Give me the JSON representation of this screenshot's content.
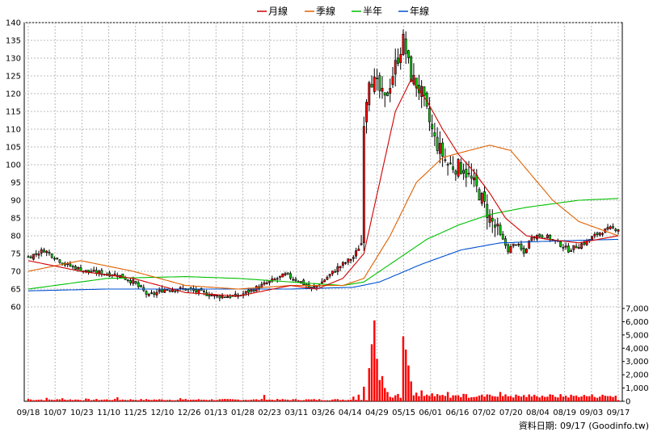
{
  "chart_data": {
    "type": "candlestick",
    "legend": [
      {
        "label": "月線",
        "color": "#d00000"
      },
      {
        "label": "季線",
        "color": "#e06000"
      },
      {
        "label": "半年",
        "color": "#00c000"
      },
      {
        "label": "年線",
        "color": "#0050d0"
      }
    ],
    "price_axis": {
      "min": 60,
      "max": 140,
      "ticks": [
        60,
        65,
        70,
        75,
        80,
        85,
        90,
        95,
        100,
        105,
        110,
        115,
        120,
        125,
        130,
        135,
        140
      ]
    },
    "volume_axis": {
      "min": 0,
      "max": 7000,
      "ticks": [
        0,
        1000,
        2000,
        3000,
        4000,
        5000,
        6000,
        7000
      ],
      "tick_labels": [
        "0",
        "1,000",
        "2,000",
        "3,000",
        "4,000",
        "5,000",
        "6,000",
        "7,000"
      ]
    },
    "x_labels": [
      "09/18",
      "10/07",
      "10/23",
      "11/10",
      "11/25",
      "12/10",
      "12/26",
      "01/13",
      "01/28",
      "02/23",
      "03/11",
      "03/26",
      "04/14",
      "04/29",
      "05/15",
      "06/01",
      "06/16",
      "07/02",
      "07/20",
      "08/04",
      "08/19",
      "09/03",
      "09/17"
    ],
    "close_keyframes": [
      [
        0,
        74
      ],
      [
        6,
        76
      ],
      [
        14,
        72
      ],
      [
        22,
        70
      ],
      [
        34,
        69
      ],
      [
        40,
        67
      ],
      [
        46,
        63
      ],
      [
        52,
        65
      ],
      [
        60,
        65
      ],
      [
        66,
        64
      ],
      [
        72,
        63
      ],
      [
        80,
        63
      ],
      [
        86,
        65
      ],
      [
        92,
        67
      ],
      [
        98,
        69
      ],
      [
        104,
        67
      ],
      [
        108,
        65
      ],
      [
        112,
        67
      ],
      [
        118,
        71
      ],
      [
        124,
        74
      ],
      [
        127,
        78
      ],
      [
        128,
        113
      ],
      [
        130,
        125
      ],
      [
        133,
        122
      ],
      [
        136,
        118
      ],
      [
        140,
        128
      ],
      [
        143,
        135
      ],
      [
        146,
        125
      ],
      [
        150,
        120
      ],
      [
        153,
        112
      ],
      [
        155,
        107
      ],
      [
        160,
        100
      ],
      [
        166,
        99
      ],
      [
        172,
        92
      ],
      [
        176,
        85
      ],
      [
        180,
        80
      ],
      [
        183,
        76
      ],
      [
        186,
        78
      ],
      [
        189,
        75
      ],
      [
        192,
        80
      ],
      [
        197,
        80
      ],
      [
        202,
        78
      ],
      [
        206,
        76
      ],
      [
        212,
        78
      ],
      [
        218,
        81
      ],
      [
        222,
        82
      ],
      [
        225,
        82
      ]
    ],
    "ma_month": [
      [
        0,
        73
      ],
      [
        20,
        70
      ],
      [
        40,
        68
      ],
      [
        60,
        64
      ],
      [
        80,
        63
      ],
      [
        100,
        66
      ],
      [
        110,
        65
      ],
      [
        120,
        68
      ],
      [
        128,
        75
      ],
      [
        134,
        95
      ],
      [
        140,
        115
      ],
      [
        146,
        124
      ],
      [
        152,
        118
      ],
      [
        158,
        110
      ],
      [
        164,
        103
      ],
      [
        170,
        98
      ],
      [
        176,
        92
      ],
      [
        182,
        85
      ],
      [
        190,
        80
      ],
      [
        198,
        79
      ],
      [
        210,
        78
      ],
      [
        225,
        80
      ]
    ],
    "ma_quarter": [
      [
        0,
        70
      ],
      [
        20,
        73
      ],
      [
        40,
        70
      ],
      [
        60,
        66
      ],
      [
        80,
        65
      ],
      [
        100,
        66
      ],
      [
        120,
        66
      ],
      [
        128,
        68
      ],
      [
        138,
        80
      ],
      [
        148,
        95
      ],
      [
        158,
        102
      ],
      [
        168,
        104
      ],
      [
        176,
        105.5
      ],
      [
        184,
        104
      ],
      [
        192,
        97
      ],
      [
        200,
        90
      ],
      [
        210,
        84
      ],
      [
        225,
        80
      ]
    ],
    "ma_half": [
      [
        0,
        65
      ],
      [
        30,
        68
      ],
      [
        60,
        68.5
      ],
      [
        80,
        68
      ],
      [
        100,
        67
      ],
      [
        120,
        66
      ],
      [
        128,
        67
      ],
      [
        140,
        73
      ],
      [
        152,
        79
      ],
      [
        164,
        83
      ],
      [
        176,
        86
      ],
      [
        190,
        88
      ],
      [
        210,
        90
      ],
      [
        225,
        90.5
      ]
    ],
    "ma_year": [
      [
        0,
        64.5
      ],
      [
        30,
        65
      ],
      [
        60,
        65
      ],
      [
        100,
        65
      ],
      [
        124,
        65.5
      ],
      [
        134,
        67
      ],
      [
        150,
        72
      ],
      [
        165,
        76
      ],
      [
        180,
        78
      ],
      [
        200,
        78.5
      ],
      [
        225,
        79
      ]
    ],
    "volume_base": 120,
    "volume_spikes": [
      [
        0,
        180
      ],
      [
        7,
        260
      ],
      [
        13,
        230
      ],
      [
        22,
        210
      ],
      [
        34,
        300
      ],
      [
        58,
        230
      ],
      [
        90,
        480
      ],
      [
        124,
        350
      ],
      [
        126,
        500
      ],
      [
        128,
        1100
      ],
      [
        130,
        2500
      ],
      [
        131,
        4300
      ],
      [
        132,
        6100
      ],
      [
        133,
        3200
      ],
      [
        134,
        1600
      ],
      [
        135,
        1900
      ],
      [
        136,
        1000
      ],
      [
        137,
        700
      ],
      [
        140,
        450
      ],
      [
        141,
        550
      ],
      [
        143,
        4900
      ],
      [
        144,
        3900
      ],
      [
        145,
        2700
      ],
      [
        146,
        1500
      ],
      [
        148,
        650
      ],
      [
        150,
        820
      ],
      [
        152,
        500
      ],
      [
        154,
        600
      ],
      [
        156,
        520
      ],
      [
        158,
        480
      ],
      [
        160,
        700
      ],
      [
        162,
        450
      ],
      [
        166,
        560
      ],
      [
        172,
        420
      ],
      [
        176,
        500
      ],
      [
        180,
        700
      ],
      [
        184,
        400
      ],
      [
        188,
        350
      ],
      [
        194,
        380
      ],
      [
        200,
        300
      ],
      [
        210,
        320
      ],
      [
        220,
        420
      ],
      [
        224,
        300
      ]
    ],
    "footer": "資料日期: 09/17 (Goodinfo.tw)"
  }
}
